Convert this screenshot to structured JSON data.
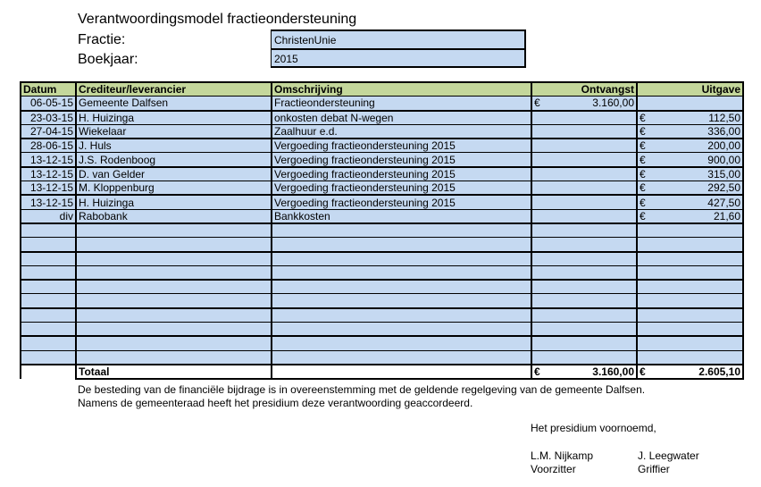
{
  "header": {
    "title": "Verantwoordingsmodel fractieondersteuning",
    "fractie_label": "Fractie:",
    "fractie_value": "ChristenUnie",
    "boekjaar_label": "Boekjaar:",
    "boekjaar_value": "2015"
  },
  "table": {
    "columns": [
      "Datum",
      "Crediteur/leverancier",
      "Omschrijving",
      "Ontvangst",
      "Uitgave"
    ],
    "currency": "€",
    "rows": [
      {
        "datum": "06-05-15",
        "crediteur": "Gemeente Dalfsen",
        "omschrijving": "Fractieondersteuning",
        "ontvangst": "3.160,00",
        "uitgave": ""
      },
      {
        "datum": "23-03-15",
        "crediteur": "H. Huizinga",
        "omschrijving": "onkosten debat N-wegen",
        "ontvangst": "",
        "uitgave": "112,50"
      },
      {
        "datum": "27-04-15",
        "crediteur": "Wiekelaar",
        "omschrijving": "Zaalhuur e.d.",
        "ontvangst": "",
        "uitgave": "336,00"
      },
      {
        "datum": "28-06-15",
        "crediteur": "J. Huls",
        "omschrijving": "Vergoeding fractieondersteuning 2015",
        "ontvangst": "",
        "uitgave": "200,00"
      },
      {
        "datum": "13-12-15",
        "crediteur": "J.S. Rodenboog",
        "omschrijving": "Vergoeding fractieondersteuning 2015",
        "ontvangst": "",
        "uitgave": "900,00"
      },
      {
        "datum": "13-12-15",
        "crediteur": "D. van Gelder",
        "omschrijving": "Vergoeding fractieondersteuning 2015",
        "ontvangst": "",
        "uitgave": "315,00"
      },
      {
        "datum": "13-12-15",
        "crediteur": "M. Kloppenburg",
        "omschrijving": "Vergoeding fractieondersteuning 2015",
        "ontvangst": "",
        "uitgave": "292,50"
      },
      {
        "datum": "13-12-15",
        "crediteur": "H. Huizinga",
        "omschrijving": "Vergoeding fractieondersteuning 2015",
        "ontvangst": "",
        "uitgave": "427,50"
      },
      {
        "datum": "div",
        "crediteur": "Rabobank",
        "omschrijving": "Bankkosten",
        "ontvangst": "",
        "uitgave": "21,60"
      }
    ],
    "empty_rows": 10,
    "total": {
      "label": "Totaal",
      "ontvangst": "3.160,00",
      "uitgave": "2.605,10"
    }
  },
  "footer": {
    "line1": "De besteding van de financiële bijdrage is in overeenstemming met de geldende regelgeving van de gemeente Dalfsen.",
    "line2": "Namens de gemeenteraad heeft het presidium deze verantwoording geaccordeerd.",
    "closing": "Het presidium voornoemd,",
    "signer1_name": "L.M. Nijkamp",
    "signer1_role": "Voorzitter",
    "signer2_name": "J. Leegwater",
    "signer2_role": "Griffier"
  },
  "colors": {
    "header_bg": "#c4d79b",
    "row_bg": "#c5d9f1"
  }
}
